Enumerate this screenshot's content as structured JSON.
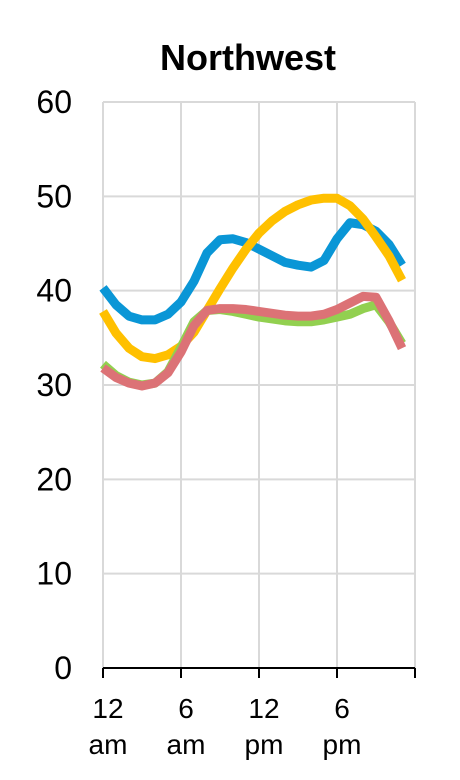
{
  "chart_data": {
    "type": "line",
    "title": "Northwest",
    "xlabel": "",
    "ylabel": "",
    "ylim": [
      0,
      60
    ],
    "yticks": [
      "0",
      "10",
      "20",
      "30",
      "40",
      "50",
      "60"
    ],
    "xticks": [
      {
        "hour": 0,
        "lines": [
          "12",
          "am"
        ]
      },
      {
        "hour": 6,
        "lines": [
          "6",
          "am"
        ]
      },
      {
        "hour": 12,
        "lines": [
          "12",
          "pm"
        ]
      },
      {
        "hour": 18,
        "lines": [
          "6",
          "pm"
        ]
      }
    ],
    "grid": true,
    "legend": "none",
    "x": [
      0,
      1,
      2,
      3,
      4,
      5,
      6,
      7,
      8,
      9,
      10,
      11,
      12,
      13,
      14,
      15,
      16,
      17,
      18,
      19,
      20,
      21,
      22,
      23
    ],
    "series": [
      {
        "color": "#0a96d6",
        "values": [
          40.3,
          38.5,
          37.3,
          36.9,
          36.9,
          37.5,
          38.8,
          41.0,
          44.0,
          45.4,
          45.5,
          45.1,
          44.4,
          43.7,
          43.0,
          42.7,
          42.5,
          43.2,
          45.5,
          47.2,
          47.0,
          46.3,
          44.9,
          42.7
        ]
      },
      {
        "color": "#ffc000",
        "values": [
          37.8,
          35.5,
          33.9,
          33.0,
          32.8,
          33.2,
          34.1,
          35.6,
          37.9,
          40.2,
          42.4,
          44.4,
          46.1,
          47.4,
          48.4,
          49.1,
          49.6,
          49.8,
          49.8,
          49.0,
          47.6,
          45.7,
          43.7,
          41.1
        ]
      },
      {
        "color": "#92d050",
        "values": [
          32.2,
          31.0,
          30.3,
          30.0,
          30.2,
          31.4,
          34.0,
          36.7,
          37.9,
          38.0,
          37.8,
          37.5,
          37.2,
          37.0,
          36.8,
          36.7,
          36.7,
          36.9,
          37.2,
          37.5,
          38.1,
          38.5,
          36.7,
          34.4
        ]
      },
      {
        "color": "#dc7276",
        "values": [
          31.8,
          30.8,
          30.2,
          29.9,
          30.2,
          31.3,
          33.5,
          36.3,
          37.9,
          38.1,
          38.1,
          38.0,
          37.8,
          37.6,
          37.4,
          37.3,
          37.3,
          37.5,
          38.0,
          38.7,
          39.4,
          39.3,
          36.8,
          33.9
        ]
      }
    ]
  }
}
